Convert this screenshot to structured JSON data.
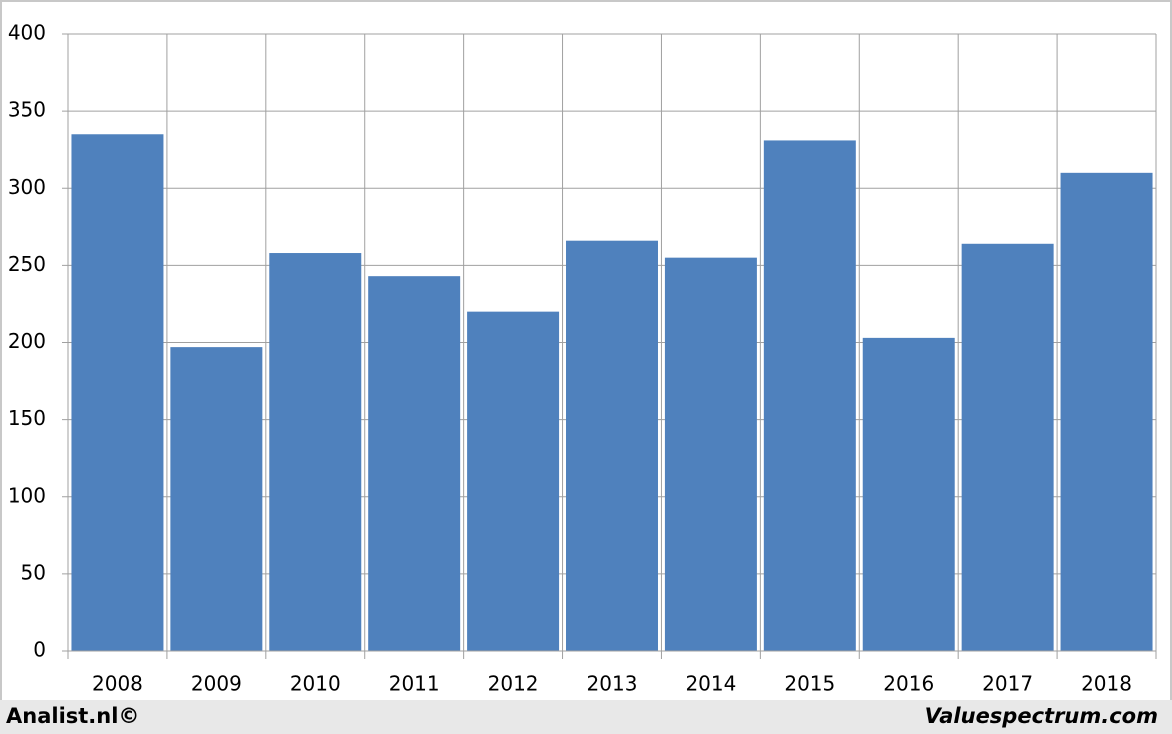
{
  "chart_data": {
    "type": "bar",
    "categories": [
      "2008",
      "2009",
      "2010",
      "2011",
      "2012",
      "2013",
      "2014",
      "2015",
      "2016",
      "2017",
      "2018"
    ],
    "values": [
      335,
      197,
      258,
      243,
      220,
      266,
      255,
      331,
      203,
      264,
      310
    ],
    "color": "#4f81bd",
    "ylim": [
      0,
      400
    ],
    "yticks": [
      0,
      50,
      100,
      150,
      200,
      250,
      300,
      350,
      400
    ],
    "grid": true
  },
  "footer": {
    "left": "Analist.nl©",
    "right": "Valuespectrum.com"
  }
}
